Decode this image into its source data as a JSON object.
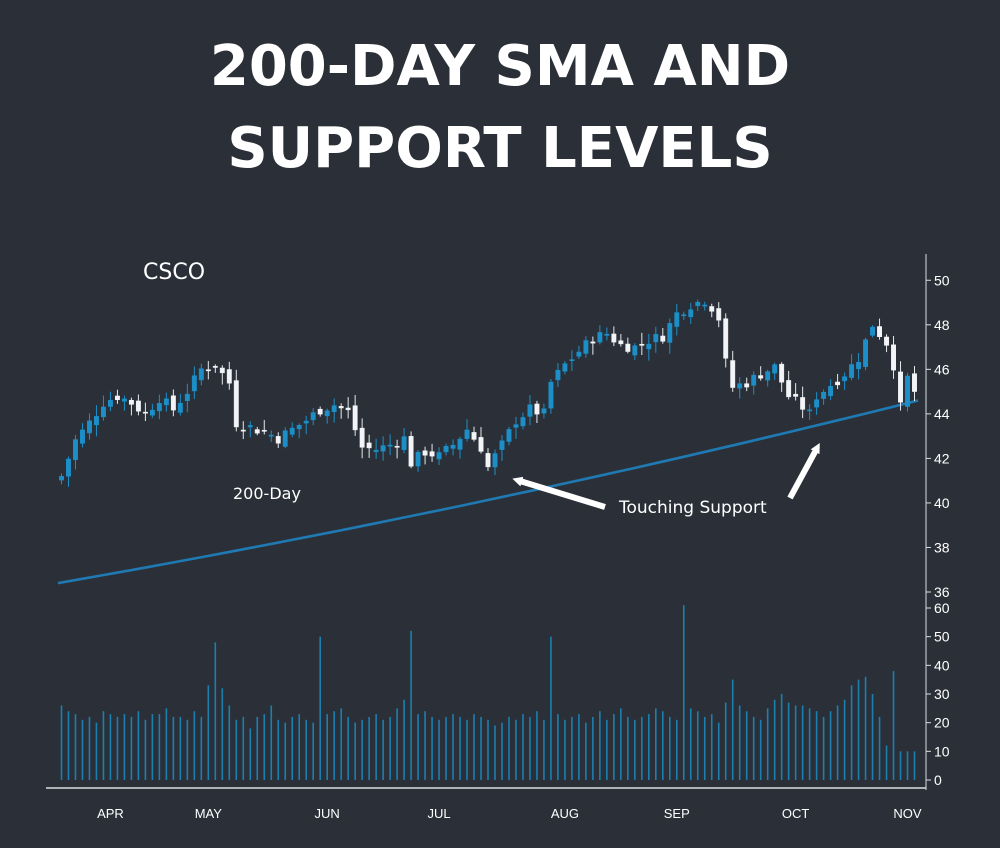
{
  "chart_data": {
    "type": "candlestick",
    "title_lines": [
      "200-DAY SMA AND",
      "SUPPORT LEVELS"
    ],
    "ticker": "CSCO",
    "sma_label": "200-Day",
    "annotation_label": "Touching Support",
    "x_labels": [
      "APR",
      "MAY",
      "JUN",
      "JUL",
      "AUG",
      "SEP",
      "OCT",
      "NOV"
    ],
    "price_axis": {
      "min": 36,
      "max": 51,
      "ticks": [
        36,
        38,
        40,
        42,
        44,
        46,
        48,
        50
      ]
    },
    "volume_axis": {
      "min": 0,
      "max": 60,
      "ticks": [
        0,
        10,
        20,
        30,
        40,
        50,
        60
      ]
    },
    "price_path": [
      [
        0,
        41.2
      ],
      [
        2,
        42.8
      ],
      [
        4,
        43.6
      ],
      [
        6,
        44.5
      ],
      [
        8,
        44.8
      ],
      [
        10,
        44.5
      ],
      [
        12,
        44.0
      ],
      [
        14,
        44.7
      ],
      [
        16,
        44.2
      ],
      [
        18,
        45.0
      ],
      [
        20,
        46.0
      ],
      [
        22,
        46.2
      ],
      [
        24,
        45.4
      ],
      [
        25,
        43.6
      ],
      [
        27,
        43.4
      ],
      [
        29,
        43.2
      ],
      [
        31,
        42.9
      ],
      [
        33,
        43.3
      ],
      [
        35,
        43.7
      ],
      [
        37,
        44.2
      ],
      [
        39,
        44.4
      ],
      [
        41,
        44.1
      ],
      [
        43,
        42.5
      ],
      [
        45,
        42.4
      ],
      [
        47,
        42.6
      ],
      [
        49,
        42.9
      ],
      [
        50,
        41.8
      ],
      [
        52,
        42.3
      ],
      [
        54,
        42.1
      ],
      [
        56,
        42.6
      ],
      [
        58,
        43.3
      ],
      [
        60,
        42.5
      ],
      [
        61,
        41.6
      ],
      [
        63,
        42.6
      ],
      [
        65,
        43.7
      ],
      [
        67,
        44.2
      ],
      [
        69,
        44.0
      ],
      [
        70,
        45.4
      ],
      [
        72,
        46.2
      ],
      [
        74,
        46.8
      ],
      [
        76,
        47.4
      ],
      [
        78,
        47.6
      ],
      [
        80,
        47.1
      ],
      [
        82,
        47.0
      ],
      [
        84,
        47.3
      ],
      [
        86,
        47.5
      ],
      [
        88,
        48.5
      ],
      [
        90,
        48.9
      ],
      [
        92,
        49.1
      ],
      [
        93,
        48.8
      ],
      [
        94,
        48.3
      ],
      [
        95,
        46.3
      ],
      [
        96,
        45.2
      ],
      [
        98,
        45.4
      ],
      [
        100,
        45.8
      ],
      [
        102,
        46.1
      ],
      [
        104,
        44.8
      ],
      [
        106,
        44.3
      ],
      [
        107,
        44.0
      ],
      [
        108,
        44.8
      ],
      [
        110,
        45.3
      ],
      [
        112,
        45.8
      ],
      [
        114,
        46.5
      ],
      [
        116,
        48.0
      ],
      [
        118,
        47.2
      ],
      [
        119,
        46.2
      ],
      [
        120,
        44.3
      ],
      [
        121,
        45.6
      ],
      [
        122,
        45.0
      ]
    ],
    "sma_start": 36.4,
    "sma_end": 44.6,
    "volume_base": [
      26,
      24,
      23,
      21,
      22,
      20,
      24,
      23,
      22,
      23,
      22,
      24,
      21,
      23,
      23,
      25,
      22,
      22,
      21,
      24,
      22,
      23,
      25,
      32,
      26,
      21,
      22,
      18,
      22,
      23,
      26,
      21,
      20,
      22,
      23,
      21,
      20,
      22,
      23,
      24,
      25,
      22,
      20,
      21,
      22,
      23,
      21,
      22,
      25,
      28,
      21,
      23,
      24,
      22,
      21,
      22,
      23,
      22,
      21,
      23,
      22,
      21,
      19,
      20,
      22,
      21,
      23,
      22,
      24,
      21,
      28,
      23,
      21,
      22,
      23,
      20,
      22,
      24,
      21,
      23,
      25,
      22,
      21,
      22,
      23,
      25,
      24,
      22,
      21,
      23,
      25,
      24,
      22,
      23,
      20,
      27,
      35,
      26,
      24,
      22,
      21,
      25,
      28,
      30,
      27,
      26,
      26,
      25,
      24,
      22,
      24,
      26,
      28,
      33,
      35,
      36,
      30,
      22,
      12,
      10,
      10,
      10,
      10
    ],
    "volume_spikes": [
      [
        21,
        33
      ],
      [
        22,
        48
      ],
      [
        37,
        50
      ],
      [
        50,
        52
      ],
      [
        70,
        50
      ],
      [
        89,
        61
      ],
      [
        119,
        38
      ]
    ]
  }
}
